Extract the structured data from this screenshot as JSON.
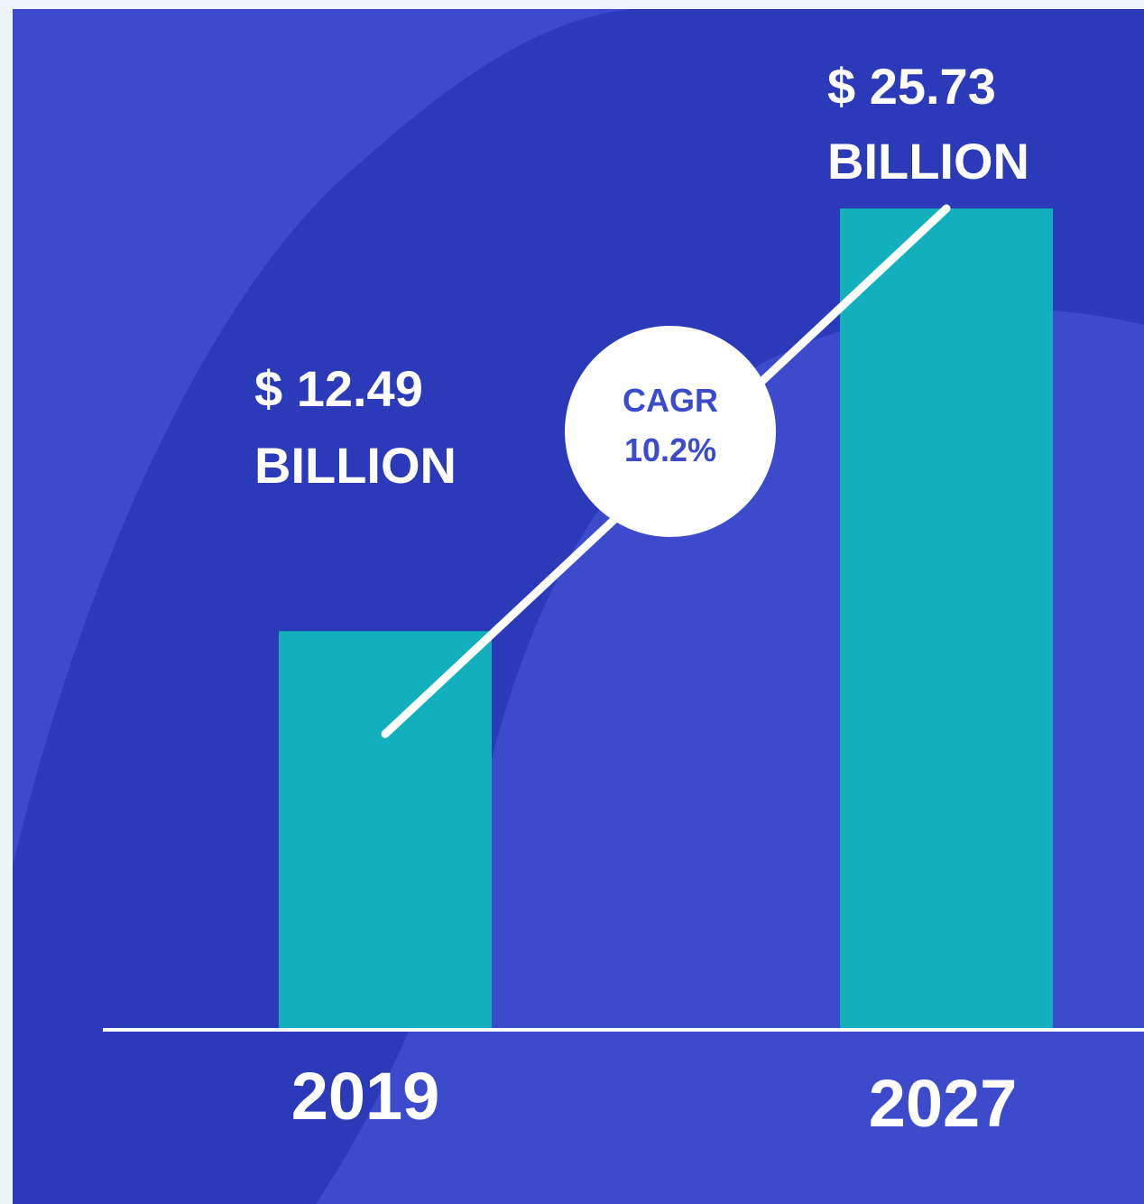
{
  "colors": {
    "page_border": "#eef4fd",
    "panel_background": "#3c4bcc",
    "curve_shape": "#2a3ab8",
    "bar": "#12afbd",
    "axis_line": "#ffffff",
    "text": "#ffffff",
    "cagr_circle": "#ffffff",
    "cagr_text": "#3c4bcc"
  },
  "chart_data": {
    "type": "bar",
    "title": "",
    "xlabel": "",
    "ylabel": "",
    "categories": [
      "2019",
      "2027"
    ],
    "values": [
      12.49,
      25.73
    ],
    "units": "USD billion",
    "ylim": [
      0,
      26
    ],
    "grid": false,
    "data_labels": [
      {
        "line1": "$ 12.49",
        "line2": "BILLION"
      },
      {
        "line1": "$ 25.73",
        "line2": "BILLION"
      }
    ],
    "annotations": {
      "cagr_label": "CAGR",
      "cagr_value": "10.2%"
    }
  }
}
